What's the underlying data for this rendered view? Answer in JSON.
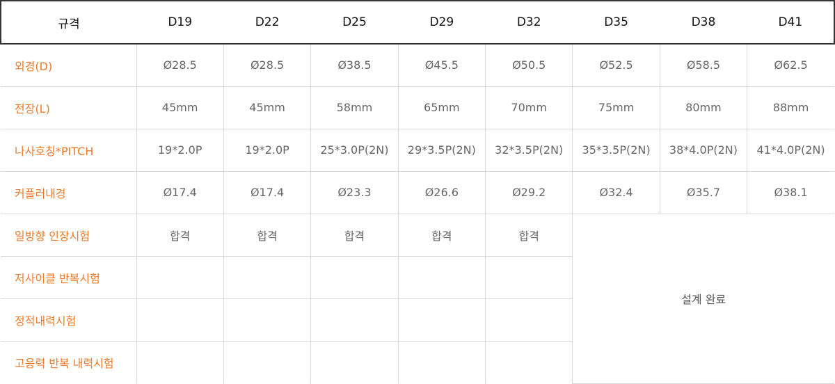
{
  "header": {
    "label": "규격",
    "sizes": [
      "D19",
      "D22",
      "D25",
      "D29",
      "D32",
      "D35",
      "D38",
      "D41"
    ]
  },
  "rows": [
    {
      "label": "외경(D)",
      "values": [
        "Ø28.5",
        "Ø28.5",
        "Ø38.5",
        "Ø45.5",
        "Ø50.5",
        "Ø52.5",
        "Ø58.5",
        "Ø62.5"
      ]
    },
    {
      "label": "전장(L)",
      "values": [
        "45mm",
        "45mm",
        "58mm",
        "65mm",
        "70mm",
        "75mm",
        "80mm",
        "88mm"
      ]
    },
    {
      "label": "나사호칭*PITCH",
      "values": [
        "19*2.0P",
        "19*2.0P",
        "25*3.0P(2N)",
        "29*3.5P(2N)",
        "32*3.5P(2N)",
        "35*3.5P(2N)",
        "38*4.0P(2N)",
        "41*4.0P(2N)"
      ]
    },
    {
      "label": "커플러내경",
      "values": [
        "Ø17.4",
        "Ø17.4",
        "Ø23.3",
        "Ø26.6",
        "Ø29.2",
        "Ø32.4",
        "Ø35.7",
        "Ø38.1"
      ]
    }
  ],
  "tests": [
    {
      "label": "일방향 인장시험",
      "values": [
        "합격",
        "합격",
        "합격",
        "합격",
        "합격"
      ]
    },
    {
      "label": "저사이클 반복시험",
      "values": [
        "",
        "",
        "",
        "",
        ""
      ]
    },
    {
      "label": "정적내력시험",
      "values": [
        "",
        "",
        "",
        "",
        ""
      ]
    },
    {
      "label": "고응력 반복 내력시험",
      "values": [
        "",
        "",
        "",
        "",
        ""
      ]
    }
  ],
  "merged_note": "설계 완료",
  "colors": {
    "row_label": "#ef7b2a",
    "value_text": "#666666",
    "border": "#d9d9d9",
    "header_border": "#333333"
  }
}
